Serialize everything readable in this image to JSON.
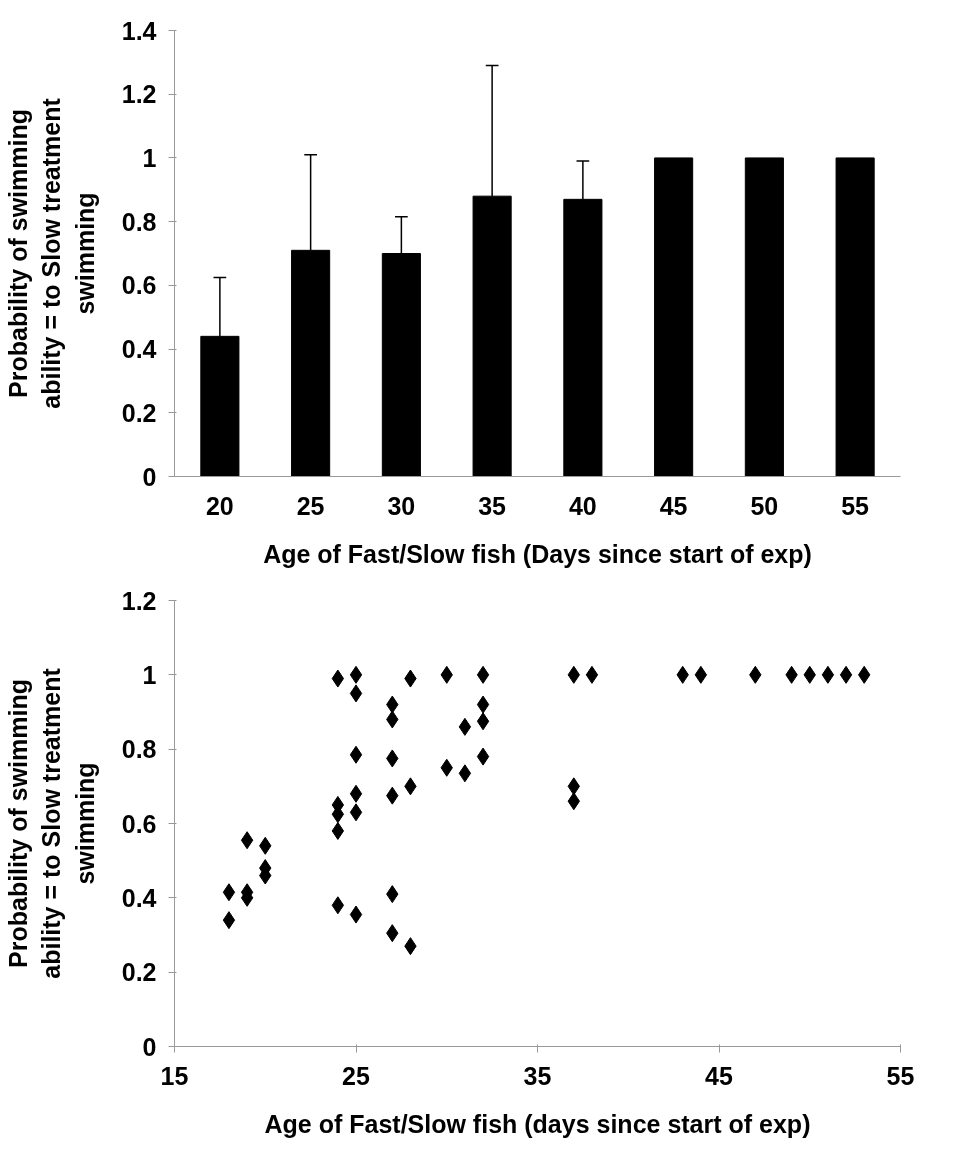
{
  "chart_data": [
    {
      "type": "bar",
      "xlabel": "Age of Fast/Slow fish (Days since start of exp)",
      "ylabel": "Probability of swimming ability = to Slow treatment swimming",
      "categories": [
        "20",
        "25",
        "30",
        "35",
        "40",
        "45",
        "50",
        "55"
      ],
      "values": [
        0.44,
        0.71,
        0.7,
        0.88,
        0.87,
        1,
        1,
        1
      ],
      "errors": [
        [
          0.44,
          0.625
        ],
        [
          0.71,
          1.01
        ],
        [
          0.7,
          0.815
        ],
        [
          0.88,
          1.29
        ],
        [
          0.87,
          0.99
        ],
        null,
        null,
        null
      ],
      "color": "#000000",
      "ylim": [
        0,
        1.4
      ],
      "yticks": [
        0,
        0.2,
        0.4,
        0.6,
        0.8,
        1,
        1.2,
        1.4
      ],
      "grid": false
    },
    {
      "type": "scatter",
      "xlabel": "Age of Fast/Slow fish (days since start of exp)",
      "ylabel": "Probability of swimming ability = to Slow treatment swimming",
      "x": [
        24,
        25,
        25,
        28,
        30,
        32,
        27,
        27,
        32,
        32,
        31,
        25,
        27,
        32,
        30,
        31,
        25,
        28,
        27,
        24,
        24,
        25,
        24,
        19,
        20,
        20,
        20,
        18,
        19,
        19,
        18,
        24,
        25,
        27,
        27,
        28,
        37,
        38,
        37,
        37,
        43,
        44,
        47,
        49,
        50,
        51,
        52,
        53
      ],
      "values": [
        0.99,
        1.0,
        0.95,
        0.99,
        1.0,
        1.0,
        0.92,
        0.88,
        0.92,
        0.875,
        0.86,
        0.785,
        0.775,
        0.78,
        0.75,
        0.735,
        0.68,
        0.7,
        0.675,
        0.65,
        0.625,
        0.63,
        0.58,
        0.555,
        0.54,
        0.48,
        0.46,
        0.415,
        0.415,
        0.4,
        0.34,
        0.38,
        0.355,
        0.41,
        0.305,
        0.27,
        1.0,
        1.0,
        0.7,
        0.66,
        1.0,
        1.0,
        1.0,
        1.0,
        1.0,
        1.0,
        1.0,
        1.0
      ],
      "color": "#000000",
      "marker": "diamond",
      "xlim": [
        15,
        55
      ],
      "xticks": [
        15,
        25,
        35,
        45,
        55
      ],
      "ylim": [
        0,
        1.2
      ],
      "yticks": [
        0,
        0.2,
        0.4,
        0.6,
        0.8,
        1,
        1.2
      ],
      "grid": false
    }
  ]
}
